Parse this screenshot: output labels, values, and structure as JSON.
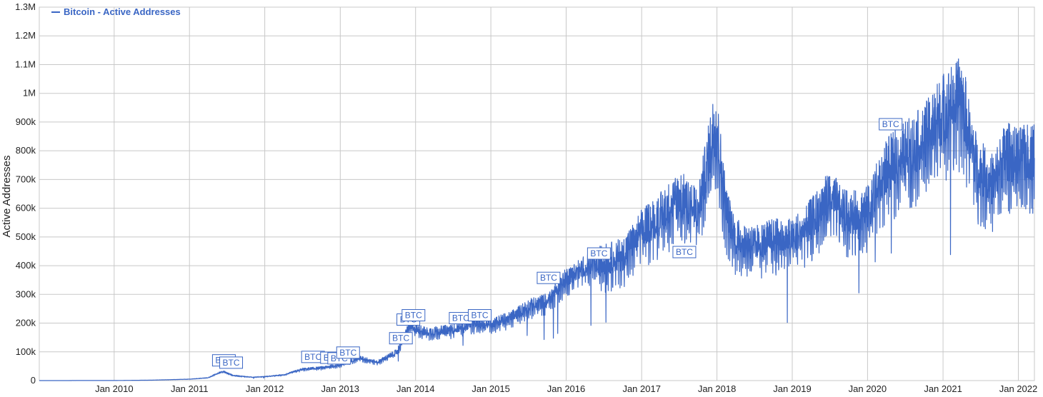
{
  "chart_data": {
    "type": "line",
    "title": "",
    "xlabel": "",
    "ylabel": "Active Addresses",
    "legend": {
      "position": "top-left",
      "entries": [
        "Bitcoin - Active Addresses"
      ]
    },
    "grid": true,
    "ylim": [
      0,
      1300000
    ],
    "xlim": [
      "2009-01-03",
      "2022-03-20"
    ],
    "y_ticks": [
      0,
      100000,
      200000,
      300000,
      400000,
      500000,
      600000,
      700000,
      800000,
      900000,
      1000000,
      1100000,
      1200000,
      1300000
    ],
    "y_tick_labels": [
      "0",
      "100k",
      "200k",
      "300k",
      "400k",
      "500k",
      "600k",
      "700k",
      "800k",
      "900k",
      "1M",
      "1.1M",
      "1.2M",
      "1.3M"
    ],
    "x_ticks": [
      "2010-01-01",
      "2011-01-01",
      "2012-01-01",
      "2013-01-01",
      "2014-01-01",
      "2015-01-01",
      "2016-01-01",
      "2017-01-01",
      "2018-01-01",
      "2019-01-01",
      "2020-01-01",
      "2021-01-01",
      "2022-01-01"
    ],
    "x_tick_labels": [
      "Jan 2010",
      "Jan 2011",
      "Jan 2012",
      "Jan 2013",
      "Jan 2014",
      "Jan 2015",
      "Jan 2016",
      "Jan 2017",
      "Jan 2018",
      "Jan 2019",
      "Jan 2020",
      "Jan 2021",
      "Jan 2022"
    ],
    "series": [
      {
        "name": "Bitcoin - Active Addresses",
        "color": "#3a66c4",
        "points": [
          [
            "2009-01-03",
            0
          ],
          [
            "2010-01-01",
            300
          ],
          [
            "2010-07-01",
            1500
          ],
          [
            "2011-01-01",
            5000
          ],
          [
            "2011-04-01",
            10000
          ],
          [
            "2011-06-10",
            33000
          ],
          [
            "2011-08-01",
            18000
          ],
          [
            "2011-11-01",
            12000
          ],
          [
            "2012-01-01",
            14000
          ],
          [
            "2012-04-01",
            20000
          ],
          [
            "2012-07-01",
            40000
          ],
          [
            "2012-10-01",
            45000
          ],
          [
            "2013-01-01",
            55000
          ],
          [
            "2013-04-01",
            80000
          ],
          [
            "2013-07-01",
            65000
          ],
          [
            "2013-10-01",
            100000
          ],
          [
            "2013-12-01",
            190000
          ],
          [
            "2014-03-01",
            170000
          ],
          [
            "2014-07-01",
            180000
          ],
          [
            "2014-10-01",
            200000
          ],
          [
            "2015-01-01",
            200000
          ],
          [
            "2015-04-01",
            220000
          ],
          [
            "2015-07-01",
            260000
          ],
          [
            "2015-10-01",
            280000
          ],
          [
            "2016-01-01",
            360000
          ],
          [
            "2016-04-01",
            400000
          ],
          [
            "2016-07-01",
            420000
          ],
          [
            "2016-10-01",
            440000
          ],
          [
            "2017-01-01",
            530000
          ],
          [
            "2017-04-01",
            580000
          ],
          [
            "2017-07-01",
            650000
          ],
          [
            "2017-10-01",
            600000
          ],
          [
            "2017-12-20",
            900000
          ],
          [
            "2018-01-01",
            880000
          ],
          [
            "2018-02-15",
            600000
          ],
          [
            "2018-04-01",
            500000
          ],
          [
            "2018-07-01",
            480000
          ],
          [
            "2018-10-01",
            500000
          ],
          [
            "2019-01-01",
            500000
          ],
          [
            "2019-04-01",
            560000
          ],
          [
            "2019-07-01",
            650000
          ],
          [
            "2019-10-01",
            580000
          ],
          [
            "2020-01-01",
            600000
          ],
          [
            "2020-04-01",
            750000
          ],
          [
            "2020-07-01",
            800000
          ],
          [
            "2020-10-01",
            850000
          ],
          [
            "2021-01-01",
            950000
          ],
          [
            "2021-04-01",
            1000000
          ],
          [
            "2021-06-15",
            750000
          ],
          [
            "2021-09-01",
            700000
          ],
          [
            "2021-11-01",
            800000
          ],
          [
            "2022-01-01",
            780000
          ],
          [
            "2022-03-20",
            800000
          ]
        ]
      }
    ],
    "flags": [
      {
        "date": "2011-06-10",
        "value": 53000,
        "text": "BTC"
      },
      {
        "date": "2011-07-15",
        "value": 45000,
        "text": "BTC"
      },
      {
        "date": "2012-08-15",
        "value": 65000,
        "text": "BTC"
      },
      {
        "date": "2012-11-15",
        "value": 62000,
        "text": "BTC"
      },
      {
        "date": "2012-12-20",
        "value": 60000,
        "text": "BTC"
      },
      {
        "date": "2013-02-01",
        "value": 80000,
        "text": "BTC"
      },
      {
        "date": "2013-10-15",
        "value": 130000,
        "text": "BTC"
      },
      {
        "date": "2013-11-20",
        "value": 195000,
        "text": "BTC"
      },
      {
        "date": "2013-12-15",
        "value": 210000,
        "text": "BTC"
      },
      {
        "date": "2014-08-01",
        "value": 200000,
        "text": "BTC"
      },
      {
        "date": "2014-11-01",
        "value": 210000,
        "text": "BTC"
      },
      {
        "date": "2015-10-01",
        "value": 340000,
        "text": "BTC"
      },
      {
        "date": "2016-06-01",
        "value": 425000,
        "text": "BTC"
      },
      {
        "date": "2017-07-20",
        "value": 430000,
        "text": "BTC"
      },
      {
        "date": "2020-04-15",
        "value": 875000,
        "text": "BTC"
      }
    ]
  }
}
